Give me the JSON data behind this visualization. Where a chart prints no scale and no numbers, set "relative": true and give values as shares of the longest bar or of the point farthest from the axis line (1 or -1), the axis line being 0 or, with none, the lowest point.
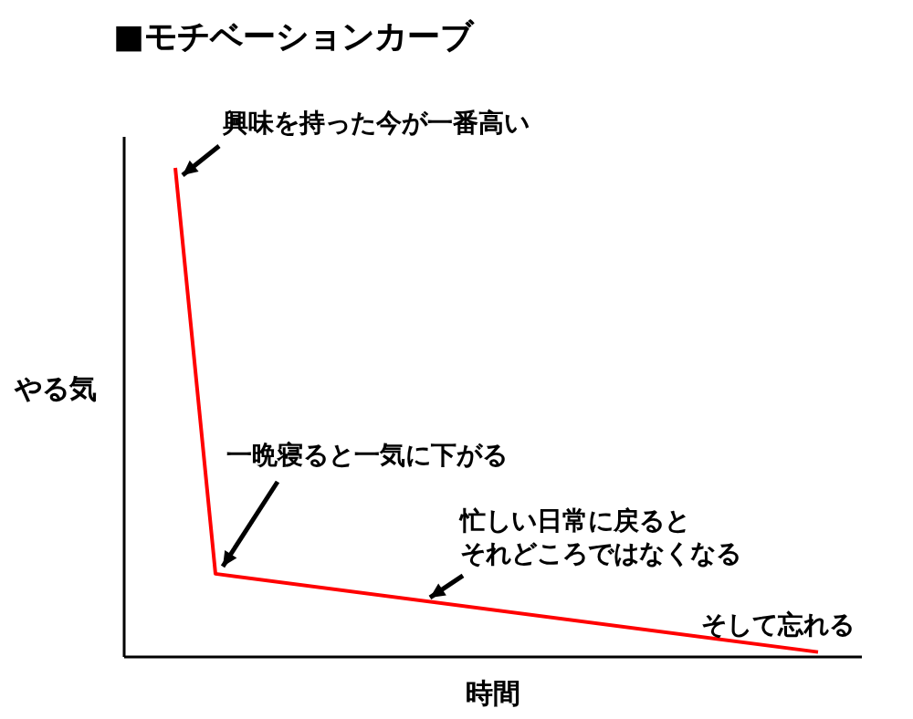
{
  "chart_data": {
    "type": "line",
    "title": "■モチベーションカーブ",
    "xlabel": "時間",
    "ylabel": "やる気",
    "relative": true,
    "categories": [
      null,
      null,
      null,
      null,
      null,
      null,
      null,
      null,
      null,
      null,
      null,
      null,
      null,
      null,
      null,
      null,
      null,
      null,
      null
    ],
    "series": [
      {
        "color": "#ff0000",
        "values": [
          null,
          1,
          0.17,
          null,
          null,
          null,
          null,
          null,
          null,
          null,
          null,
          null,
          null,
          null,
          null,
          null,
          null,
          0.01,
          null
        ]
      }
    ],
    "annotations": [
      "興味を持った今が一番高い",
      "一晩寝ると一気に下がる",
      "忙しい日常に戻ると",
      "それどころではなくなる",
      "そして忘れる"
    ],
    "marker": "none",
    "line_style": "solid"
  }
}
